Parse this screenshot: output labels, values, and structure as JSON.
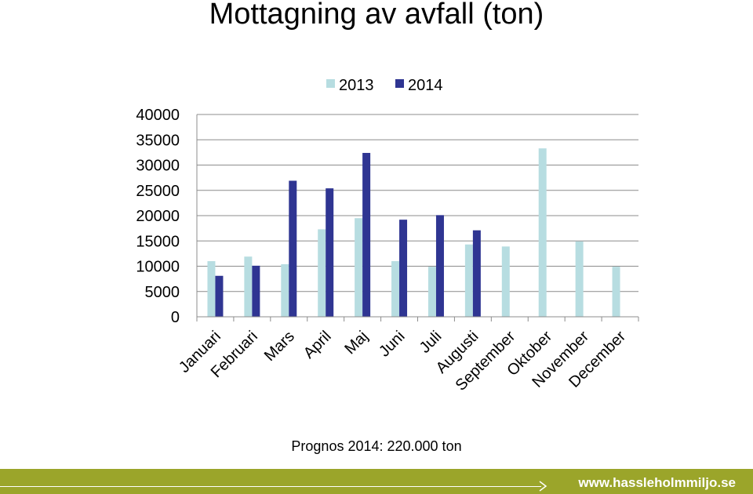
{
  "title": "Mottagning av avfall (ton)",
  "note": "Prognos 2014: 220.000 ton",
  "footer": {
    "url": "www.hassleholmmiljo.se"
  },
  "chart_data": {
    "type": "bar",
    "categories": [
      "Januari",
      "Februari",
      "Mars",
      "April",
      "Maj",
      "Juni",
      "Juli",
      "Augusti",
      "September",
      "Oktober",
      "November",
      "December"
    ],
    "series": [
      {
        "name": "2013",
        "color": "#b7dde1",
        "values": [
          11000,
          11900,
          10400,
          17300,
          19500,
          11000,
          9900,
          14300,
          13900,
          33300,
          14900,
          9900
        ]
      },
      {
        "name": "2014",
        "color": "#2f3592",
        "values": [
          8100,
          10100,
          26900,
          25400,
          32400,
          19200,
          20100,
          17100,
          null,
          null,
          null,
          null
        ]
      }
    ],
    "ylim": [
      0,
      40000
    ],
    "yticks": [
      0,
      5000,
      10000,
      15000,
      20000,
      25000,
      30000,
      35000,
      40000
    ],
    "grid": true,
    "legend": "top-center"
  }
}
